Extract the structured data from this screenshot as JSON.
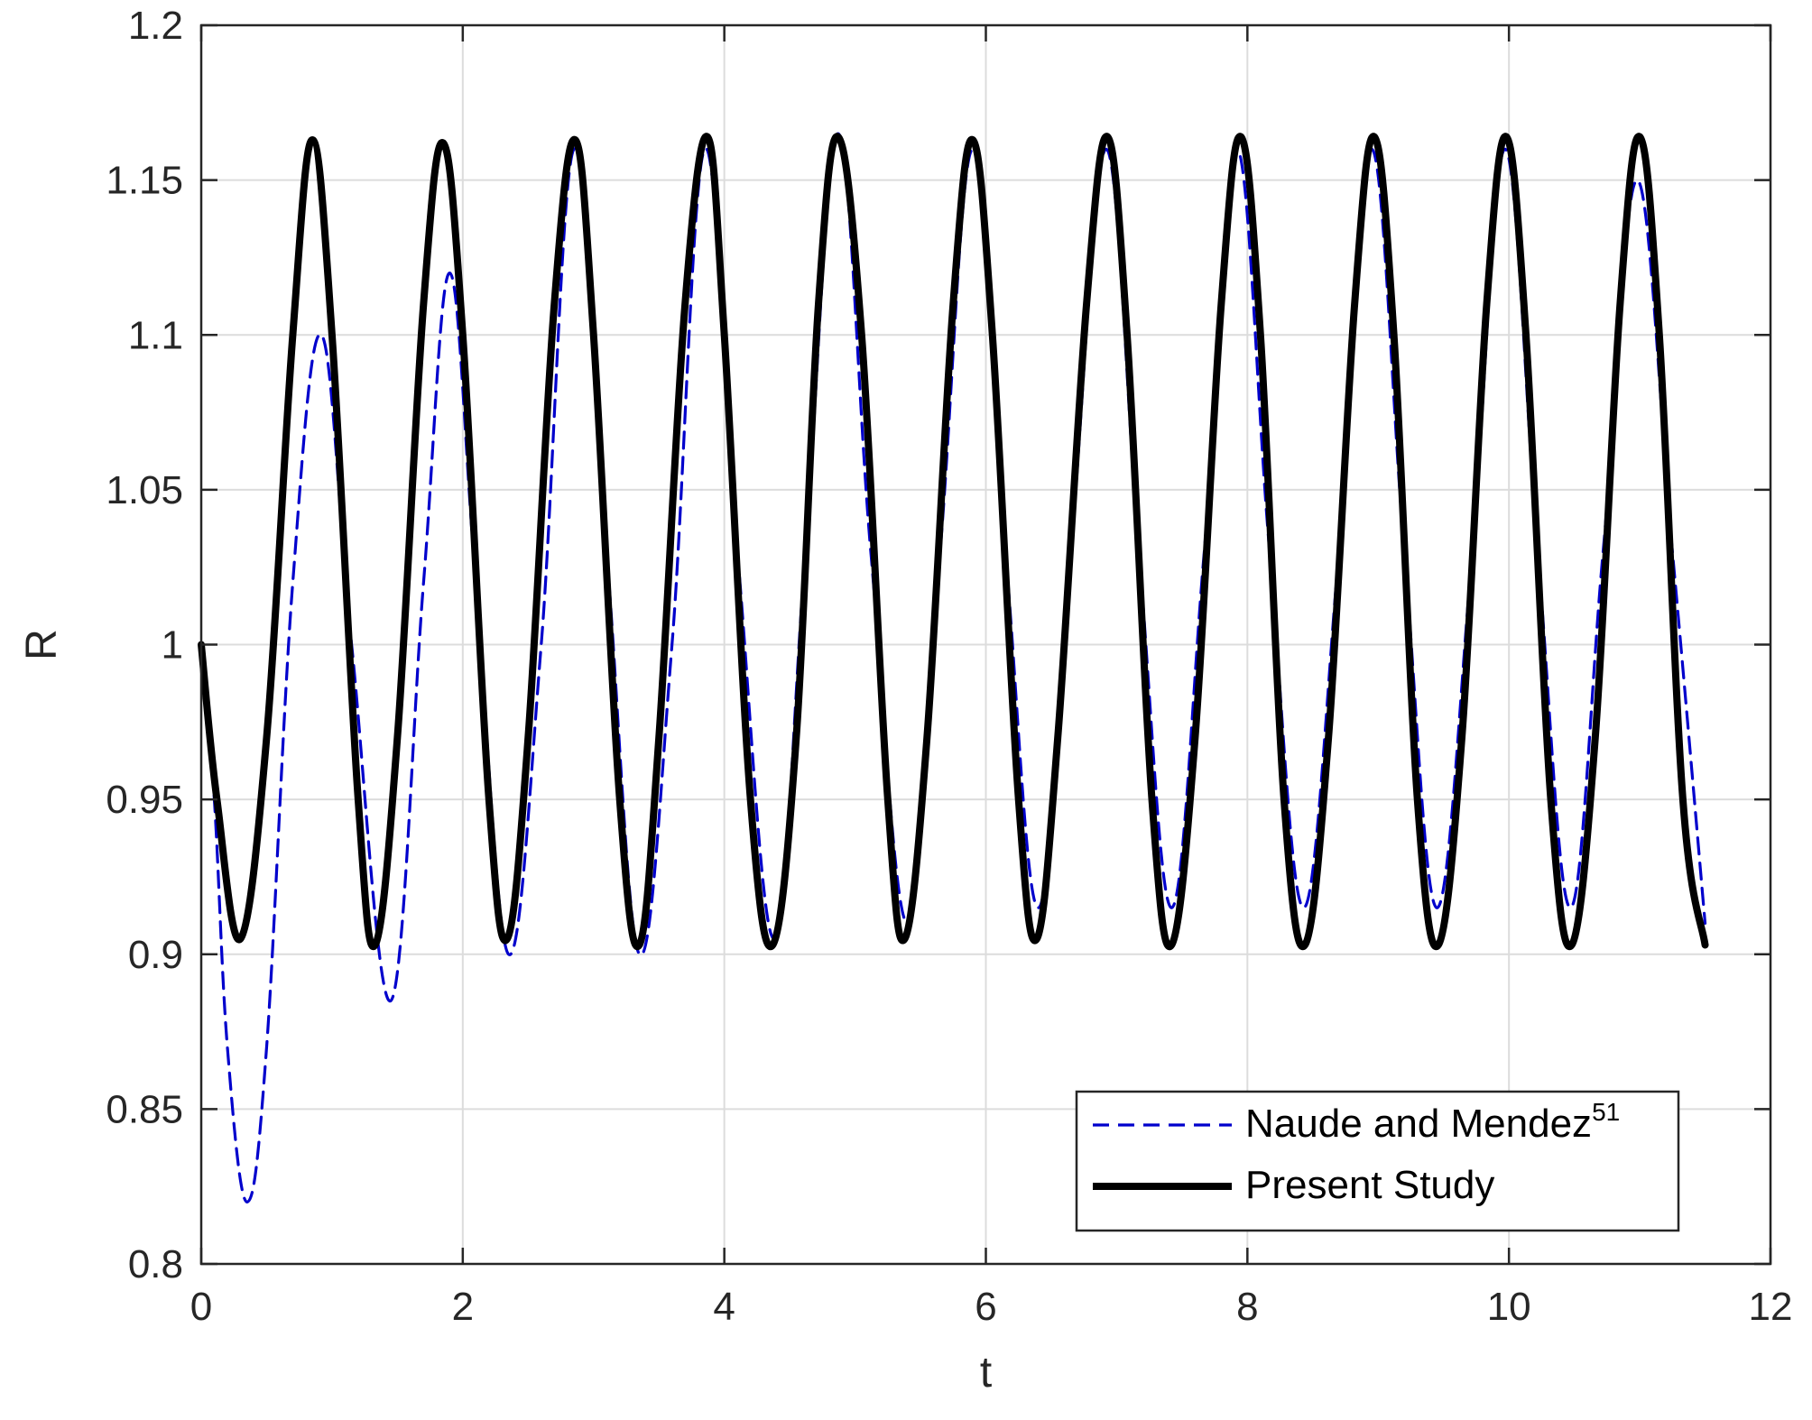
{
  "chart_data": {
    "type": "line",
    "title": "",
    "xlabel": "t",
    "ylabel": "R",
    "xlim": [
      0,
      12
    ],
    "ylim": [
      0.8,
      1.2
    ],
    "x_ticks": [
      0,
      2,
      4,
      6,
      8,
      10,
      12
    ],
    "x_tick_labels": [
      "0",
      "2",
      "4",
      "6",
      "8",
      "10",
      "12"
    ],
    "y_ticks": [
      0.8,
      0.85,
      0.9,
      0.95,
      1.0,
      1.05,
      1.1,
      1.15,
      1.2
    ],
    "y_tick_labels": [
      "0.8",
      "0.85",
      "0.9",
      "0.95",
      "1",
      "1.05",
      "1.1",
      "1.15",
      "1.2"
    ],
    "grid": true,
    "legend_position": "bottom-right",
    "series": [
      {
        "name": "Naude and Mendez",
        "name_superscript": "51",
        "color": "#0000cc",
        "line_style": "dashed",
        "x": [
          0,
          0.1,
          0.2,
          0.35,
          0.5,
          0.7,
          0.92,
          1.15,
          1.45,
          1.7,
          1.9,
          2.1,
          2.35,
          2.6,
          2.85,
          3.1,
          3.35,
          3.6,
          3.85,
          4.1,
          4.38,
          4.62,
          4.87,
          5.12,
          5.4,
          5.65,
          5.9,
          6.15,
          6.4,
          6.65,
          6.92,
          7.17,
          7.42,
          7.67,
          7.92,
          8.17,
          8.43,
          8.7,
          8.95,
          9.2,
          9.45,
          9.72,
          9.97,
          10.22,
          10.47,
          10.72,
          10.98,
          11.25,
          11.5
        ],
        "y": [
          1.0,
          0.95,
          0.87,
          0.82,
          0.87,
          1.02,
          1.1,
          1.0,
          0.885,
          1.02,
          1.12,
          1.02,
          0.9,
          1.0,
          1.16,
          1.03,
          0.9,
          1.0,
          1.16,
          1.03,
          0.905,
          1.03,
          1.165,
          1.03,
          0.91,
          1.03,
          1.16,
          1.03,
          0.915,
          1.03,
          1.16,
          1.03,
          0.915,
          1.03,
          1.16,
          1.03,
          0.915,
          1.03,
          1.16,
          1.03,
          0.915,
          1.03,
          1.16,
          1.03,
          0.915,
          1.03,
          1.15,
          1.03,
          0.91
        ]
      },
      {
        "name": "Present Study",
        "color": "#000000",
        "line_style": "solid",
        "x": [
          0,
          0.12,
          0.3,
          0.5,
          0.7,
          0.85,
          1.0,
          1.2,
          1.33,
          1.5,
          1.7,
          1.85,
          2.0,
          2.2,
          2.34,
          2.5,
          2.7,
          2.86,
          3.0,
          3.2,
          3.35,
          3.5,
          3.7,
          3.87,
          4.0,
          4.2,
          4.37,
          4.55,
          4.72,
          4.87,
          5.05,
          5.25,
          5.38,
          5.55,
          5.75,
          5.9,
          6.05,
          6.25,
          6.39,
          6.55,
          6.77,
          6.93,
          7.08,
          7.27,
          7.42,
          7.6,
          7.8,
          7.95,
          8.1,
          8.28,
          8.44,
          8.62,
          8.82,
          8.97,
          9.12,
          9.3,
          9.46,
          9.64,
          9.83,
          9.98,
          10.13,
          10.32,
          10.48,
          10.66,
          10.85,
          11.0,
          11.15,
          11.33,
          11.5
        ],
        "y": [
          1.0,
          0.95,
          0.905,
          0.97,
          1.1,
          1.163,
          1.1,
          0.95,
          0.903,
          0.97,
          1.11,
          1.162,
          1.1,
          0.95,
          0.905,
          0.97,
          1.11,
          1.163,
          1.1,
          0.95,
          0.903,
          0.97,
          1.11,
          1.164,
          1.1,
          0.95,
          0.903,
          0.97,
          1.11,
          1.164,
          1.1,
          0.95,
          0.905,
          0.97,
          1.11,
          1.163,
          1.1,
          0.95,
          0.905,
          0.97,
          1.11,
          1.164,
          1.1,
          0.95,
          0.903,
          0.97,
          1.11,
          1.164,
          1.1,
          0.95,
          0.903,
          0.97,
          1.11,
          1.164,
          1.1,
          0.95,
          0.903,
          0.97,
          1.11,
          1.164,
          1.1,
          0.95,
          0.903,
          0.97,
          1.11,
          1.164,
          1.1,
          0.95,
          0.903
        ]
      }
    ]
  }
}
